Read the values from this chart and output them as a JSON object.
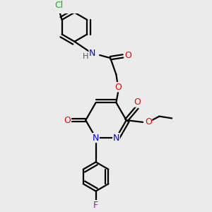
{
  "background_color": "#ebebeb",
  "atom_colors": {
    "C": "#000000",
    "N": "#0000ee",
    "O": "#ee0000",
    "Cl": "#00bb00",
    "F": "#bb00bb",
    "H": "#555555"
  },
  "bond_color": "#000000",
  "bond_width": 1.6,
  "dbo": 0.08
}
